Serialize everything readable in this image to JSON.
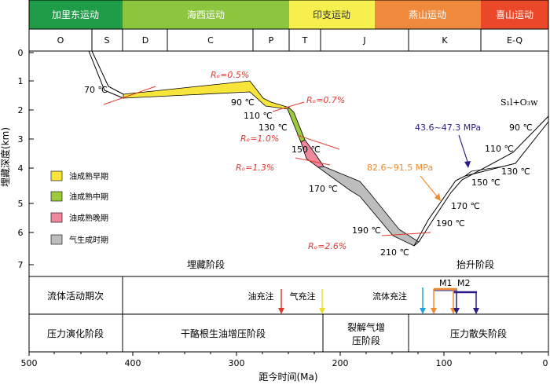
{
  "orogenies": [
    {
      "label": "加里东运动",
      "color": "#1e9c47"
    },
    {
      "label": "海西运动",
      "color": "#8cc63f"
    },
    {
      "label": "印支运动",
      "color": "#f5f04d"
    },
    {
      "label": "燕山运动",
      "color": "#ef8a3c"
    },
    {
      "label": "喜山运动",
      "color": "#ea4828"
    }
  ],
  "periods": [
    "O",
    "S",
    "D",
    "C",
    "P",
    "T",
    "J",
    "K",
    "E-Q"
  ],
  "y_axis": {
    "label": "埋藏深度(km)",
    "ticks": [
      "0",
      "1",
      "2",
      "3",
      "4",
      "5",
      "6",
      "7"
    ]
  },
  "x_axis": {
    "label": "距今时间(Ma)",
    "ticks": [
      "500",
      "400",
      "300",
      "200",
      "100",
      "0"
    ]
  },
  "formation_label": "S₁l+O₃w",
  "temperature_labels": [
    "70 ℃",
    "90 ℃",
    "110 ℃",
    "130 ℃",
    "150 ℃",
    "170 ℃",
    "190 ℃",
    "210 ℃",
    "190 ℃",
    "170 ℃",
    "150 ℃",
    "130 ℃",
    "110 ℃",
    "90 ℃"
  ],
  "maturity_labels": [
    "Rₒ=0.5%",
    "Rₒ=0.7%",
    "Rₒ=1.0%",
    "Rₒ=1.3%",
    "Rₒ=2.6%"
  ],
  "pressure_labels": {
    "upper": "43.6~47.3 MPa",
    "lower": "82.6~91.5 MPa"
  },
  "legend": [
    {
      "label": "油成熟早期",
      "color": "#f8e53c"
    },
    {
      "label": "油成熟中期",
      "color": "#9dc93d"
    },
    {
      "label": "油成熟晚期",
      "color": "#f0879a"
    },
    {
      "label": "气生成时期",
      "color": "#bdbdbd"
    }
  ],
  "stage_labels": {
    "burial": "埋藏阶段",
    "uplift": "抬升阶段"
  },
  "fluid_row": {
    "title": "流体活动期次",
    "oil_charge": "油充注",
    "gas_charge": "气充注",
    "fluid_charge": "流体充注",
    "m1": "M1",
    "m2": "M2"
  },
  "pressure_row": {
    "title": "压力演化阶段",
    "stage1": "干酪根生油增压阶段",
    "stage2_line1": "裂解气增",
    "stage2_line2": "压阶段",
    "stage3": "压力散失阶段"
  }
}
